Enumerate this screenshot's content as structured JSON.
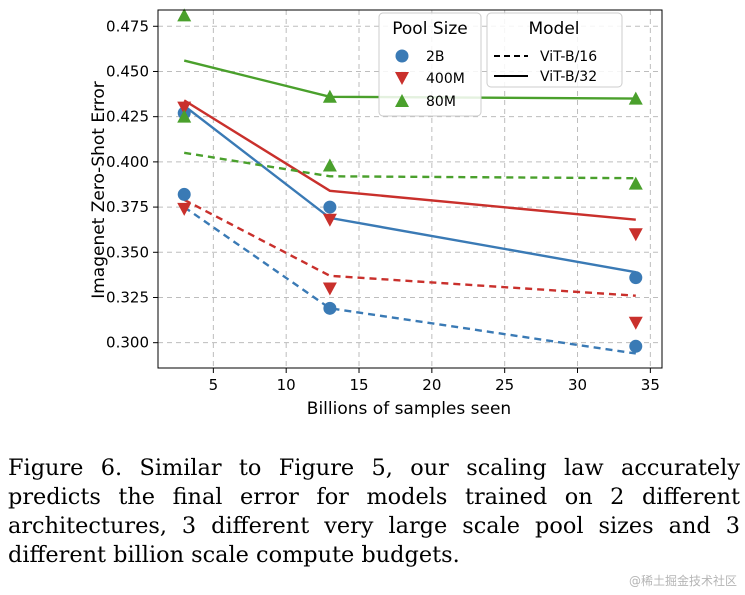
{
  "chart_data": {
    "type": "scatter",
    "xlabel": "Billions of samples seen",
    "ylabel": "Imagenet Zero-Shot Error",
    "xlim": [
      1.2,
      35.8
    ],
    "ylim": [
      0.286,
      0.484
    ],
    "xticks": [
      5,
      10,
      15,
      20,
      25,
      30,
      35
    ],
    "yticks": [
      0.3,
      0.325,
      0.35,
      0.375,
      0.4,
      0.425,
      0.45,
      0.475
    ],
    "grid": true,
    "legends": {
      "pool": {
        "title": "Pool Size",
        "entries": [
          {
            "label": "2B",
            "marker": "circle"
          },
          {
            "label": "400M",
            "marker": "triangle-down"
          },
          {
            "label": "80M",
            "marker": "triangle-up"
          }
        ]
      },
      "model": {
        "title": "Model",
        "entries": [
          {
            "label": "ViT-B/16",
            "style": "dashed"
          },
          {
            "label": "ViT-B/32",
            "style": "solid"
          }
        ]
      }
    },
    "series": [
      {
        "pool": "2B",
        "model": "ViT-B/32",
        "color": "#3a7ab5",
        "points": [
          [
            3,
            0.427
          ],
          [
            13,
            0.375
          ],
          [
            34,
            0.336
          ]
        ],
        "fit": [
          [
            3,
            0.431
          ],
          [
            13,
            0.369
          ],
          [
            34,
            0.339
          ]
        ]
      },
      {
        "pool": "2B",
        "model": "ViT-B/16",
        "color": "#3a7ab5",
        "points": [
          [
            3,
            0.382
          ],
          [
            13,
            0.319
          ],
          [
            34,
            0.298
          ]
        ],
        "fit": [
          [
            3,
            0.375
          ],
          [
            13,
            0.319
          ],
          [
            34,
            0.294
          ]
        ]
      },
      {
        "pool": "400M",
        "model": "ViT-B/32",
        "color": "#c9302c",
        "points": [
          [
            3,
            0.43
          ],
          [
            13,
            0.368
          ],
          [
            34,
            0.36
          ]
        ],
        "fit": [
          [
            3,
            0.434
          ],
          [
            13,
            0.384
          ],
          [
            34,
            0.368
          ]
        ]
      },
      {
        "pool": "400M",
        "model": "ViT-B/16",
        "color": "#c9302c",
        "points": [
          [
            3,
            0.374
          ],
          [
            13,
            0.33
          ],
          [
            34,
            0.311
          ]
        ],
        "fit": [
          [
            3,
            0.379
          ],
          [
            13,
            0.337
          ],
          [
            34,
            0.326
          ]
        ]
      },
      {
        "pool": "80M",
        "model": "ViT-B/32",
        "color": "#4aa02c",
        "points": [
          [
            3,
            0.481
          ],
          [
            13,
            0.436
          ],
          [
            34,
            0.435
          ]
        ],
        "fit": [
          [
            3,
            0.456
          ],
          [
            13,
            0.436
          ],
          [
            34,
            0.435
          ]
        ]
      },
      {
        "pool": "80M",
        "model": "ViT-B/16",
        "color": "#4aa02c",
        "points": [
          [
            3,
            0.425
          ],
          [
            13,
            0.398
          ],
          [
            34,
            0.388
          ]
        ],
        "fit": [
          [
            3,
            0.405
          ],
          [
            13,
            0.392
          ],
          [
            34,
            0.391
          ]
        ]
      }
    ]
  },
  "caption": "Figure 6. Similar to Figure 5, our scaling law accurately predicts the final error for models trained on 2 different architectures, 3 different very large scale pool sizes and 3 different billion scale compute budgets.",
  "watermark": "@稀土掘金技术社区",
  "colors": {
    "blue": "#3a7ab5",
    "red": "#c9302c",
    "green": "#4aa02c"
  }
}
